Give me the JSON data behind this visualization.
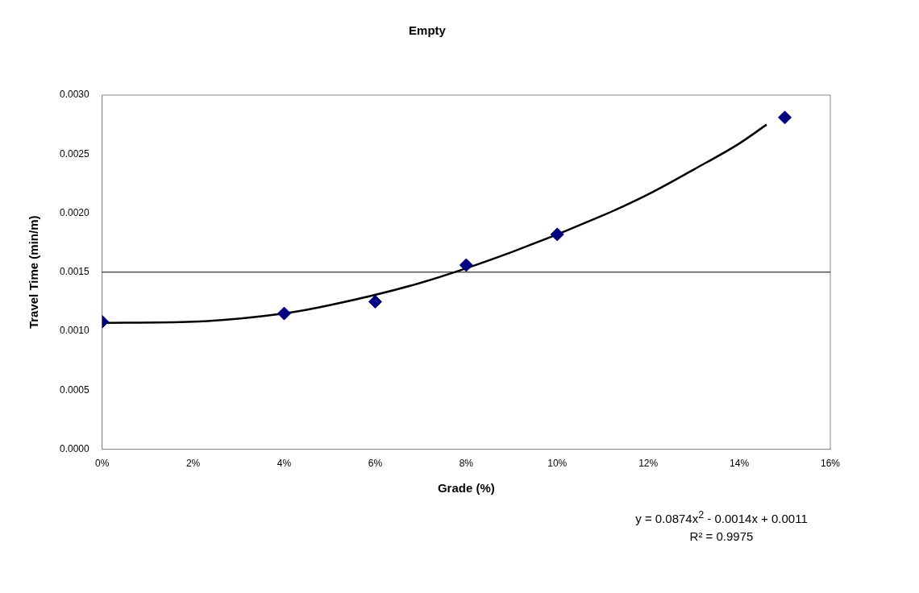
{
  "chart_data": {
    "type": "scatter",
    "title": "Empty",
    "xlabel": "Grade (%)",
    "ylabel": "Travel Time (min/m)",
    "xlim": [
      0,
      16
    ],
    "xticks": [
      {
        "value": 0,
        "label": "0%"
      },
      {
        "value": 2,
        "label": "2%"
      },
      {
        "value": 4,
        "label": "4%"
      },
      {
        "value": 6,
        "label": "6%"
      },
      {
        "value": 8,
        "label": "8%"
      },
      {
        "value": 10,
        "label": "10%"
      },
      {
        "value": 12,
        "label": "12%"
      },
      {
        "value": 14,
        "label": "14%"
      },
      {
        "value": 16,
        "label": "16%"
      }
    ],
    "ylim": [
      0,
      0.003
    ],
    "yticks": [
      {
        "value": 0,
        "label": "0.0000"
      },
      {
        "value": 0.0005,
        "label": "0.0005"
      },
      {
        "value": 0.001,
        "label": "0.0010"
      },
      {
        "value": 0.0015,
        "label": "0.0015"
      },
      {
        "value": 0.002,
        "label": "0.0020"
      },
      {
        "value": 0.0025,
        "label": "0.0025"
      },
      {
        "value": 0.003,
        "label": "0.0030"
      }
    ],
    "grid": false,
    "legend": false,
    "ref_lines": [
      {
        "axis": "y",
        "value": 0.0015,
        "color": "#000000"
      }
    ],
    "series": [
      {
        "type": "line",
        "color": "#000000",
        "marker": "none",
        "x": [
          0,
          2,
          4,
          5,
          7,
          9,
          11,
          12,
          13,
          14,
          14.6
        ],
        "values": [
          0.00107,
          0.00108,
          0.00115,
          0.00122,
          0.00141,
          0.00167,
          0.00198,
          0.00216,
          0.00237,
          0.00259,
          0.00275
        ]
      },
      {
        "type": "scatter",
        "color": "#000080",
        "marker": "diamond",
        "x": [
          0,
          4,
          6,
          8,
          10,
          15
        ],
        "values": [
          0.00108,
          0.00115,
          0.00125,
          0.00156,
          0.00182,
          0.00281
        ]
      }
    ],
    "annotations": [
      "y = 0.0874x$^{2}$ - 0.0014x + 0.0011",
      "R² = 0.9975"
    ]
  }
}
